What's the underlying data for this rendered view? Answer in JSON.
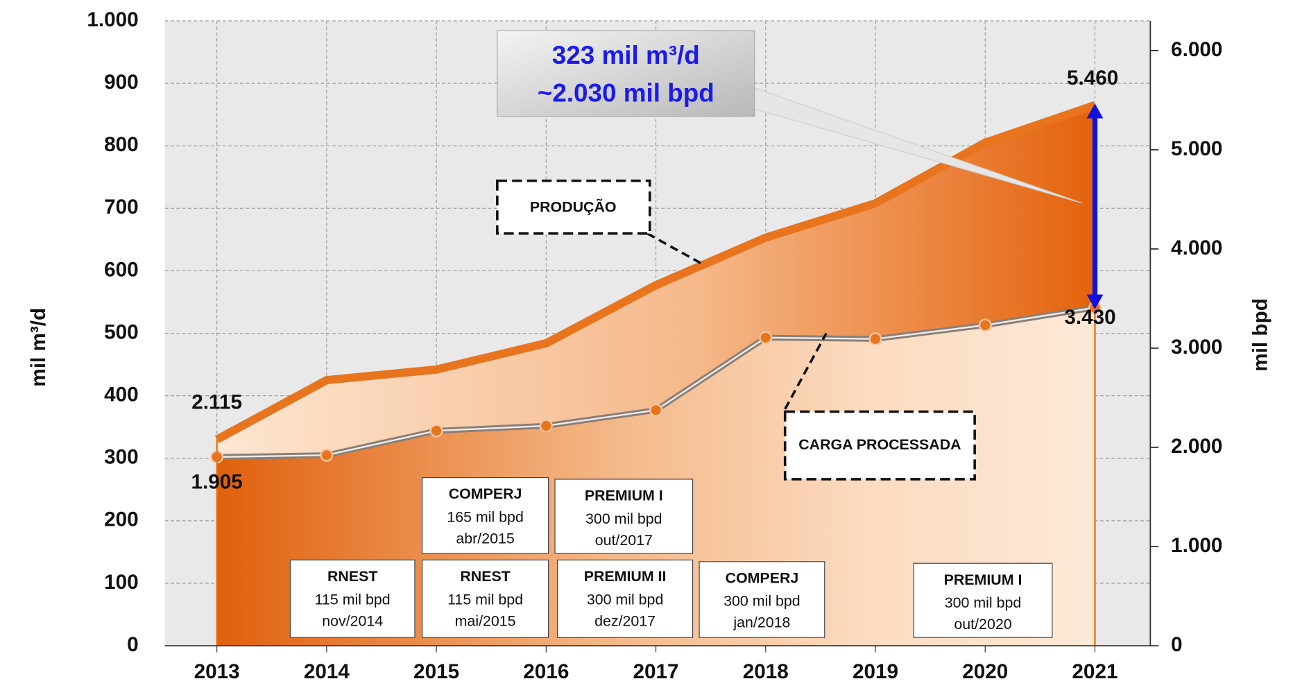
{
  "chart_data": {
    "type": "line",
    "y_label": "mil m³/d",
    "y2_label": "mil bpd",
    "categories": [
      "2013",
      "2014",
      "2015",
      "2016",
      "2017",
      "2018",
      "2019",
      "2020",
      "2021"
    ],
    "series": [
      {
        "name": "PRODUÇÃO",
        "color": "#e8741e",
        "values": [
          330,
          425,
          442,
          484,
          577,
          653,
          708,
          805,
          865
        ]
      },
      {
        "name": "CARGA PROCESSADA",
        "color": "#8a7f78",
        "values": [
          302,
          305,
          344,
          352,
          377,
          493,
          491,
          513,
          541
        ]
      }
    ],
    "ylim": [
      0,
      1000
    ],
    "yticks": [
      0,
      100,
      200,
      300,
      400,
      500,
      600,
      700,
      800,
      900,
      {
        "value": 1000,
        "label": "1.000"
      }
    ],
    "y2lim": [
      0,
      6300
    ],
    "y2ticks": [
      0,
      {
        "value": 1000,
        "label": "1.000"
      },
      {
        "value": 2000,
        "label": "2.000"
      },
      {
        "value": 3000,
        "label": "3.000"
      },
      {
        "value": 4000,
        "label": "4.000"
      },
      {
        "value": 5000,
        "label": "5.000"
      },
      {
        "value": 6000,
        "label": "6.000"
      }
    ],
    "grid": true,
    "point_labels": [
      "2.115",
      "1.905",
      "5.460",
      "3.430"
    ],
    "callout": [
      "323 mil m³/d",
      "~2.030 mil bpd"
    ],
    "projects": [
      {
        "name": "COMPERJ",
        "capacity": "165 mil bpd",
        "date": "abr/2015"
      },
      {
        "name": "PREMIUM I",
        "capacity": "300 mil bpd",
        "date": "out/2017"
      },
      {
        "name": "RNEST",
        "capacity": "115 mil bpd",
        "date": "nov/2014"
      },
      {
        "name": "RNEST",
        "capacity": "115 mil bpd",
        "date": "mai/2015"
      },
      {
        "name": "PREMIUM II",
        "capacity": "300 mil bpd",
        "date": "dez/2017"
      },
      {
        "name": "COMPERJ",
        "capacity": "300 mil bpd",
        "date": "jan/2018"
      },
      {
        "name": "PREMIUM I",
        "capacity": "300 mil bpd",
        "date": "out/2020"
      }
    ]
  }
}
